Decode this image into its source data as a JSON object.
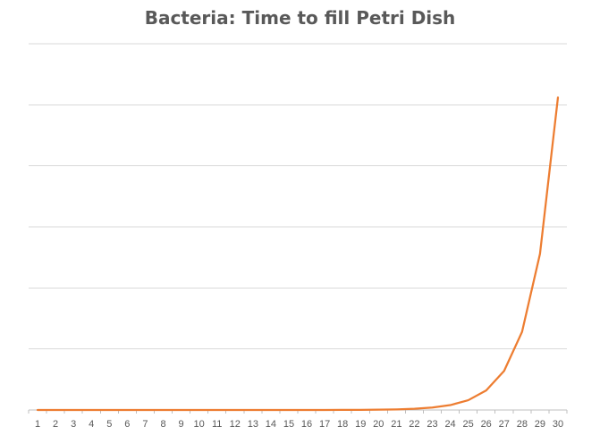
{
  "chart_data": {
    "type": "line",
    "title": "Bacteria: Time to fill Petri Dish",
    "xlabel": "",
    "ylabel": "",
    "x": [
      1,
      2,
      3,
      4,
      5,
      6,
      7,
      8,
      9,
      10,
      11,
      12,
      13,
      14,
      15,
      16,
      17,
      18,
      19,
      20,
      21,
      22,
      23,
      24,
      25,
      26,
      27,
      28,
      29,
      30
    ],
    "series": [
      {
        "color": "#ED7D31",
        "values": [
          1e-06,
          2e-06,
          4e-06,
          8e-06,
          1.5e-05,
          3e-05,
          6e-05,
          0.00012,
          0.00024,
          0.00048,
          0.001,
          0.002,
          0.004,
          0.008,
          0.015,
          0.03,
          0.06,
          0.12,
          0.24,
          0.48,
          1,
          2,
          4,
          8,
          16,
          32,
          64,
          128,
          256,
          512
        ]
      }
    ],
    "ylim": [
      0,
      550
    ],
    "gridlines_y": [
      0,
      100,
      200,
      300,
      400,
      500,
      600
    ],
    "grid": true,
    "y_tick_labels_shown": false,
    "legend": "none",
    "colors": {
      "line": "#ED7D31",
      "grid": "#D9D9D9",
      "axis": "#BFBFBF",
      "text": "#595959"
    }
  }
}
